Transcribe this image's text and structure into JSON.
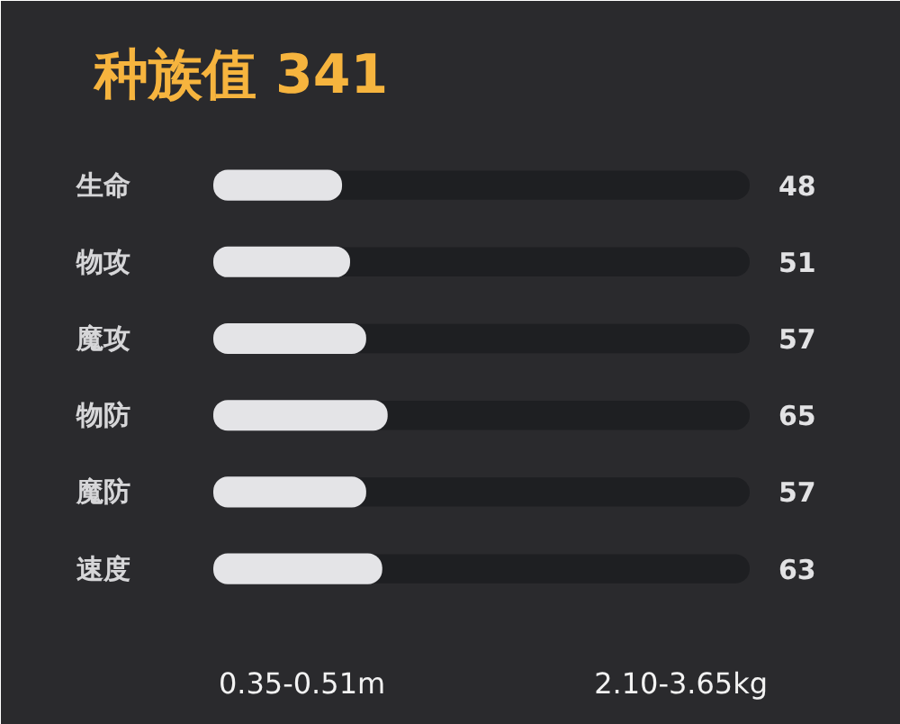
{
  "chart_data": {
    "type": "bar",
    "orientation": "horizontal",
    "title": "种族值 341",
    "categories": [
      "生命",
      "物攻",
      "魔攻",
      "物防",
      "魔防",
      "速度"
    ],
    "values": [
      48,
      51,
      57,
      65,
      57,
      63
    ],
    "color": "#e4e4e7",
    "xlim": [
      0,
      200
    ],
    "data_labels": true,
    "tick_labels": "y",
    "grid": false,
    "annotations": [
      "0.35-0.51m",
      "2.10-3.65kg"
    ]
  }
}
